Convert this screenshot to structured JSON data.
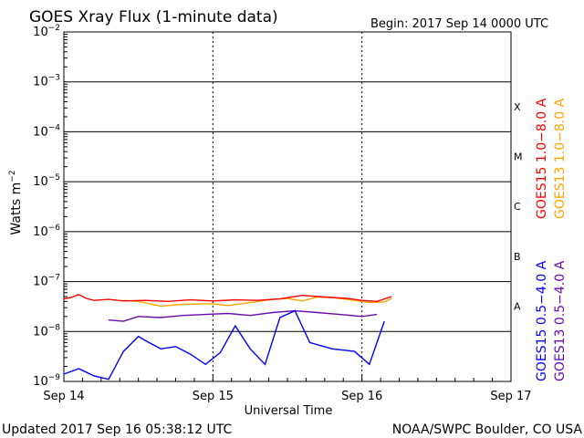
{
  "header": {
    "title": "GOES Xray Flux (1-minute data)",
    "begin": "Begin:  2017 Sep 14 0000 UTC"
  },
  "footer": {
    "updated": "Updated 2017 Sep 16 05:38:12 UTC",
    "credit": "NOAA/SWPC Boulder, CO USA"
  },
  "colors": {
    "goes15_long": "#ff0000",
    "goes13_long": "#ffa500",
    "goes15_short": "#0000ff",
    "goes13_short": "#6a0dad",
    "grid": "#000000"
  },
  "chart_data": {
    "type": "line",
    "title": "GOES Xray Flux (1-minute data)",
    "xlabel": "Universal Time",
    "ylabel": "Watts m⁻²",
    "ylabel_base": "Watts m",
    "ylabel_exp": "−2",
    "y_scale": "log",
    "ylim": [
      1e-09,
      0.01
    ],
    "xlim": [
      "2017-09-14 00:00",
      "2017-09-17 00:00"
    ],
    "x_ticks": [
      "Sep 14",
      "Sep 15",
      "Sep 16",
      "Sep 17"
    ],
    "y_ticks": [
      {
        "base": "10",
        "exp": "−2",
        "value": 0.01
      },
      {
        "base": "10",
        "exp": "−3",
        "value": 0.001
      },
      {
        "base": "10",
        "exp": "−4",
        "value": 0.0001
      },
      {
        "base": "10",
        "exp": "−5",
        "value": 1e-05
      },
      {
        "base": "10",
        "exp": "−6",
        "value": 1e-06
      },
      {
        "base": "10",
        "exp": "−7",
        "value": 1e-07
      },
      {
        "base": "10",
        "exp": "−8",
        "value": 1e-08
      },
      {
        "base": "10",
        "exp": "−9",
        "value": 1e-09
      }
    ],
    "flare_classes": [
      {
        "label": "X",
        "value": 0.00032
      },
      {
        "label": "M",
        "value": 3.2e-05
      },
      {
        "label": "C",
        "value": 3.2e-06
      },
      {
        "label": "B",
        "value": 3.2e-07
      },
      {
        "label": "A",
        "value": 3.2e-08
      }
    ],
    "legend_right": [
      {
        "name": "GOES15 1.0−8.0 A",
        "color": "#ff0000"
      },
      {
        "name": "GOES13 1.0−8.0 A",
        "color": "#ffa500"
      }
    ],
    "legend_left": [
      {
        "name": "GOES15 0.5−4.0 A",
        "color": "#0000ff"
      },
      {
        "name": "GOES13 0.5−4.0 A",
        "color": "#6a0dad"
      }
    ],
    "series": [
      {
        "name": "GOES13 1.0−8.0 A",
        "color": "#ffa500",
        "x": [
          0.4,
          0.5,
          0.65,
          0.8,
          1.0,
          1.1,
          1.25,
          1.4,
          1.5,
          1.6,
          1.7,
          1.8,
          1.95,
          2.05,
          2.15,
          2.2
        ],
        "y": [
          4.2e-08,
          4e-08,
          3.2e-08,
          3.5e-08,
          3.6e-08,
          3.3e-08,
          3.8e-08,
          4.4e-08,
          4.6e-08,
          4.1e-08,
          4.9e-08,
          4.8e-08,
          4.2e-08,
          3.8e-08,
          3.9e-08,
          4.6e-08
        ]
      },
      {
        "name": "GOES15 1.0−8.0 A",
        "color": "#ff0000",
        "x": [
          0.0,
          0.05,
          0.1,
          0.15,
          0.2,
          0.3,
          0.4,
          0.55,
          0.7,
          0.85,
          1.0,
          1.15,
          1.3,
          1.45,
          1.6,
          1.75,
          1.9,
          2.0,
          2.1,
          2.2
        ],
        "y": [
          4.5e-08,
          4.8e-08,
          5.5e-08,
          4.6e-08,
          4.2e-08,
          4.4e-08,
          4.1e-08,
          4.2e-08,
          4e-08,
          4.3e-08,
          4.1e-08,
          4.3e-08,
          4.2e-08,
          4.5e-08,
          5.3e-08,
          4.9e-08,
          4.6e-08,
          4.2e-08,
          4e-08,
          5e-08
        ]
      },
      {
        "name": "GOES13 0.5−4.0 A",
        "color": "#6a0dad",
        "x": [
          0.3,
          0.4,
          0.5,
          0.65,
          0.8,
          0.95,
          1.1,
          1.25,
          1.4,
          1.55,
          1.7,
          1.85,
          2.0,
          2.1
        ],
        "y": [
          1.7e-08,
          1.6e-08,
          2e-08,
          1.9e-08,
          2.1e-08,
          2.2e-08,
          2.3e-08,
          2.1e-08,
          2.4e-08,
          2.6e-08,
          2.4e-08,
          2.2e-08,
          2e-08,
          2.2e-08
        ]
      },
      {
        "name": "GOES15 0.5−4.0 A",
        "color": "#0000ff",
        "x": [
          0.0,
          0.1,
          0.2,
          0.3,
          0.4,
          0.5,
          0.55,
          0.65,
          0.75,
          0.85,
          0.95,
          1.05,
          1.15,
          1.25,
          1.35,
          1.45,
          1.55,
          1.65,
          1.8,
          1.95,
          2.05,
          2.15
        ],
        "y": [
          1.4e-09,
          1.8e-09,
          1.3e-09,
          1.1e-09,
          4e-09,
          8e-09,
          6.5e-09,
          4.5e-09,
          5e-09,
          3.5e-09,
          2.2e-09,
          3.8e-09,
          1.3e-08,
          4.5e-09,
          2.2e-09,
          1.9e-08,
          2.6e-08,
          6e-09,
          4.5e-09,
          4e-09,
          2.2e-09,
          1.6e-08
        ]
      }
    ]
  }
}
